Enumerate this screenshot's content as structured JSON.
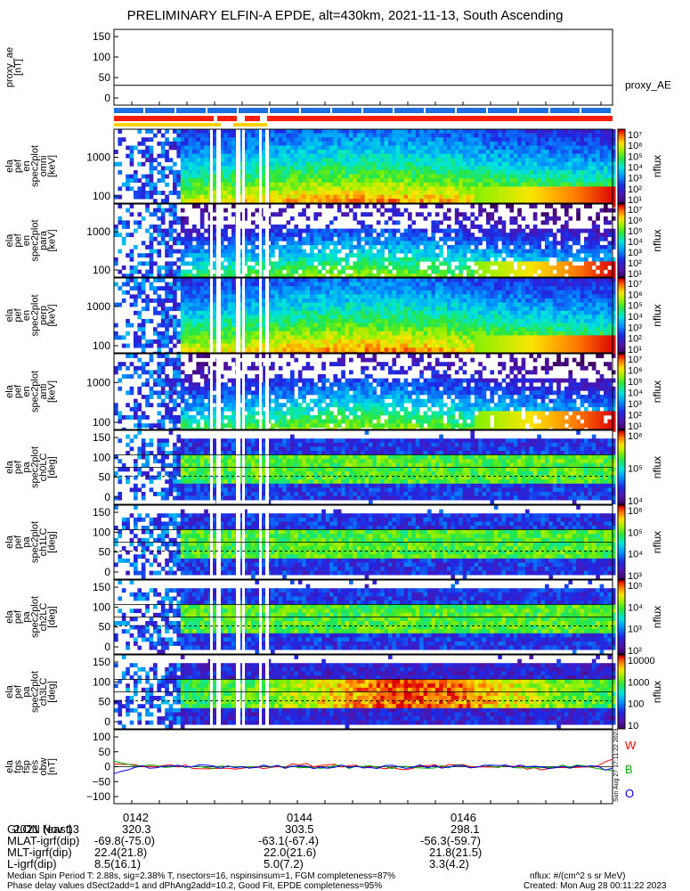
{
  "title": "PRELIMINARY ELFIN-A EPDE, alt=430km, 2021-11-13, South Ascending",
  "chart_data": [
    {
      "type": "line",
      "panel": "proxy_ae",
      "ylabel_lines": [
        "proxy_ae",
        "[nT]"
      ],
      "yticks": [
        "150",
        "100",
        "50",
        "0"
      ],
      "ylim": [
        -10,
        150
      ],
      "series": [
        {
          "name": "proxy_AE",
          "values": [
            28,
            28
          ]
        }
      ]
    },
    {
      "type": "heatmap",
      "panel": "spec2plot omni",
      "ylabel_lines": [
        "ela",
        "pef",
        "en",
        "spec2plot",
        "omni",
        "[keV]"
      ],
      "yticks": [
        "1000",
        "100"
      ],
      "colorbar": {
        "label": "nflux",
        "ticks": [
          "10⁷",
          "10⁶",
          "10⁵",
          "10⁴",
          "10³",
          "10²",
          "10¹"
        ]
      }
    },
    {
      "type": "heatmap",
      "panel": "spec2plot para",
      "ylabel_lines": [
        "ela",
        "pef",
        "en",
        "spec2plot",
        "para",
        "[keV]"
      ],
      "yticks": [
        "1000",
        "100"
      ],
      "colorbar": {
        "label": "nflux",
        "ticks": [
          "10⁷",
          "10⁶",
          "10⁵",
          "10⁴",
          "10³",
          "10²",
          "10¹"
        ]
      }
    },
    {
      "type": "heatmap",
      "panel": "spec2plot perp",
      "ylabel_lines": [
        "ela",
        "pef",
        "en",
        "spec2plot",
        "perp",
        "[keV]"
      ],
      "yticks": [
        "1000",
        "100"
      ],
      "colorbar": {
        "label": "nflux",
        "ticks": [
          "10⁷",
          "10⁶",
          "10⁵",
          "10⁴",
          "10³",
          "10²",
          "10¹"
        ]
      }
    },
    {
      "type": "heatmap",
      "panel": "spec2plot anti",
      "ylabel_lines": [
        "ela",
        "pef",
        "en",
        "spec2plot",
        "anti",
        "[keV]"
      ],
      "yticks": [
        "1000",
        "100"
      ],
      "colorbar": {
        "label": "nflux",
        "ticks": [
          "10⁷",
          "10⁶",
          "10⁵",
          "10⁴",
          "10³",
          "10²",
          "10¹"
        ]
      }
    },
    {
      "type": "heatmap",
      "panel": "spec2plot ch0LC",
      "ylabel_lines": [
        "ela",
        "pef",
        "pa",
        "spec2plot",
        "ch0LC",
        "[deg]"
      ],
      "yticks": [
        "150",
        "100",
        "50",
        "0"
      ],
      "colorbar": {
        "label": "nflux",
        "ticks": [
          "10⁶",
          "10⁵",
          "10⁴"
        ]
      }
    },
    {
      "type": "heatmap",
      "panel": "spec2plot ch1LC",
      "ylabel_lines": [
        "ela",
        "pef",
        "pa",
        "spec2plot",
        "ch1LC",
        "[deg]"
      ],
      "yticks": [
        "150",
        "100",
        "50",
        "0"
      ],
      "colorbar": {
        "label": "nflux",
        "ticks": [
          "10⁶",
          "10⁵",
          "10⁴",
          "10³"
        ]
      }
    },
    {
      "type": "heatmap",
      "panel": "spec2plot ch2LC",
      "ylabel_lines": [
        "ela",
        "pef",
        "pa",
        "spec2plot",
        "ch2LC",
        "[deg]"
      ],
      "yticks": [
        "150",
        "100",
        "50",
        "0"
      ],
      "colorbar": {
        "label": "nflux",
        "ticks": [
          "10⁵",
          "10⁴",
          "10³",
          "10²"
        ]
      }
    },
    {
      "type": "heatmap",
      "panel": "spec2plot ch3LC",
      "ylabel_lines": [
        "ela",
        "pef",
        "pa",
        "spec2plot",
        "ch3LC",
        "[deg]"
      ],
      "yticks": [
        "150",
        "100",
        "50",
        "0"
      ],
      "colorbar": {
        "label": "nflux",
        "ticks": [
          "10000",
          "1000",
          "100",
          "10"
        ]
      }
    },
    {
      "type": "line",
      "panel": "fgs res",
      "ylabel_lines": [
        "ela",
        "fgs",
        "fsp",
        "res",
        "obw",
        "[nT]"
      ],
      "yticks": [
        "100",
        "50",
        "0",
        "−50",
        "−100"
      ],
      "ylim": [
        -100,
        100
      ],
      "legend": [
        {
          "label": "W",
          "color": "#ff0000"
        },
        {
          "label": "B",
          "color": "#00b000"
        },
        {
          "label": "O",
          "color": "#0000ff"
        }
      ],
      "created_stamp": "Sun Aug 27 17:11:22 2023"
    }
  ],
  "footer": {
    "rows": [
      {
        "label": "2021 Nov 13",
        "v1": "0142",
        "v2": "0144",
        "v3": "0146"
      },
      {
        "label": "GLON (east)",
        "v1": "320.3",
        "v2": "303.5",
        "v3": "298.1"
      },
      {
        "label": "MLAT-igrf(dip)",
        "v1": "-69.8(-75.0)",
        "v2": "-63.1(-67.4)",
        "v3": "-56.3(-59.7)"
      },
      {
        "label": "MLT-igrf(dip)",
        "v1": "22.4(21.8)",
        "v2": "22.0(21.6)",
        "v3": "21.8(21.5)"
      },
      {
        "label": "L-igrf(dip)",
        "v1": "8.5(16.1)",
        "v2": "5.0(7.2)",
        "v3": "3.3(4.2)"
      }
    ],
    "note1": "Median Spin Period T: 2.88s, sig=2.38% T, nsectors=16, nspinsinsum=1, FGM completeness=87%",
    "note2": "Phase delay values dSect2add=1 and dPhAng2add=10.2, Good Fit, EPDE completeness=95%",
    "units": "nflux: #/(cm^2 s sr MeV)",
    "created": "Created: Mon Aug 28 00:11:22 2023"
  }
}
